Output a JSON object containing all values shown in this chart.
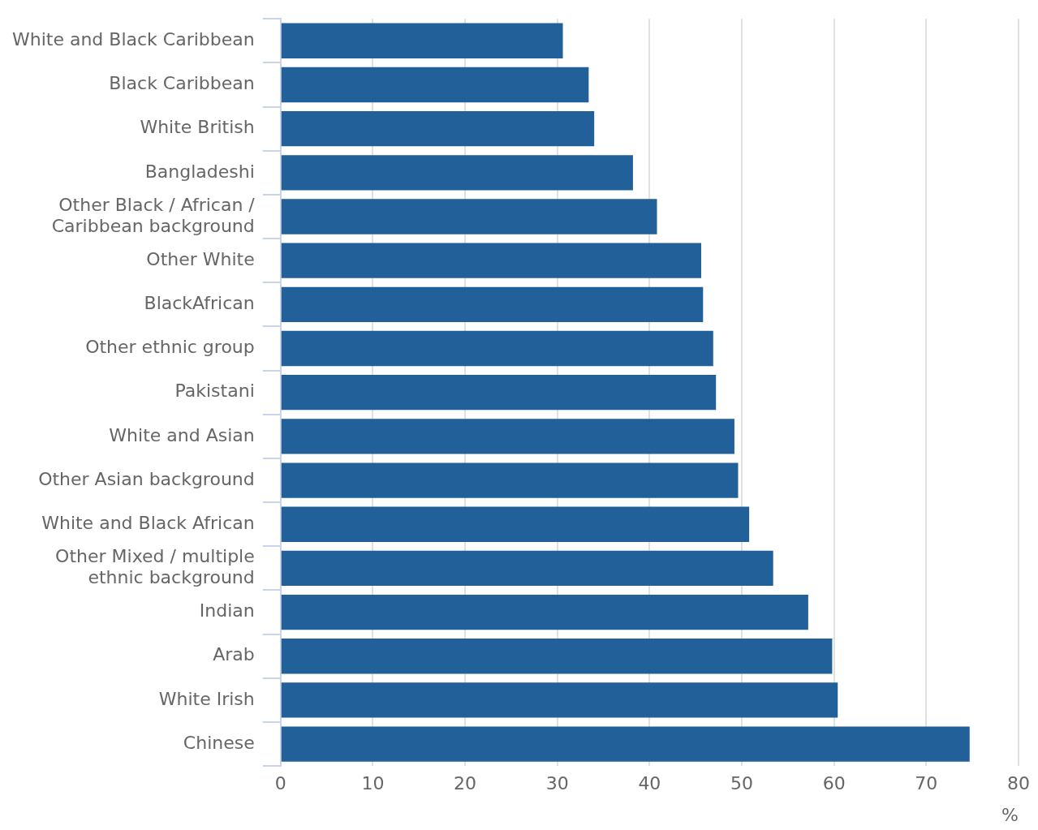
{
  "chart_data": {
    "type": "bar",
    "orientation": "horizontal",
    "xlabel": "%",
    "categories": [
      "White and Black Caribbean",
      "Black Caribbean",
      "White British",
      "Bangladeshi",
      "Other Black / African / Caribbean background",
      "Other White",
      "BlackAfrican",
      "Other ethnic group",
      "Pakistani",
      "White and Asian",
      "Other Asian background",
      "White and Black African",
      "Other Mixed / multiple ethnic background",
      "Indian",
      "Arab",
      "White Irish",
      "Chinese"
    ],
    "values": [
      30.6,
      33.4,
      34.0,
      38.2,
      40.8,
      45.6,
      45.8,
      46.9,
      47.2,
      49.2,
      49.6,
      50.8,
      53.4,
      57.2,
      59.8,
      60.4,
      74.7
    ],
    "color": "#22609a",
    "xlim": [
      0,
      80
    ],
    "xticks": [
      0,
      10,
      20,
      30,
      40,
      50,
      60,
      70,
      80
    ],
    "grid": "x",
    "legend": false
  }
}
